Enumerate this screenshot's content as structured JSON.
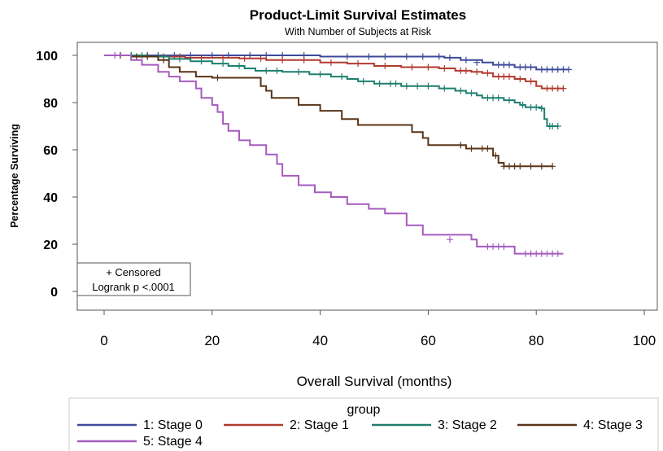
{
  "chart_data": {
    "type": "line",
    "title": "Product-Limit Survival Estimates",
    "subtitle": "With Number of Subjects at Risk",
    "xlabel": "Overall Survival (months)",
    "ylabel": "Percentage Surviving",
    "xlim": [
      0,
      100
    ],
    "ylim": [
      0,
      100
    ],
    "xticks": [
      "0",
      "20",
      "40",
      "60",
      "80",
      "100"
    ],
    "yticks": [
      "0",
      "20",
      "40",
      "60",
      "80",
      "100"
    ],
    "grid": false,
    "legend": {
      "title": "group",
      "placement": "bottom"
    },
    "inset": {
      "censored_label": "+ Censored",
      "logrank_label": "Logrank p <.0001"
    },
    "series": [
      {
        "name": "1: Stage 0",
        "color": "#3d4a9a",
        "steps": [
          [
            0,
            100
          ],
          [
            40,
            99.5
          ],
          [
            63,
            99
          ],
          [
            66,
            98
          ],
          [
            70,
            97
          ],
          [
            72,
            96
          ],
          [
            76,
            95
          ],
          [
            80,
            94
          ],
          [
            86,
            94
          ]
        ],
        "censored": [
          [
            5,
            100
          ],
          [
            8,
            100
          ],
          [
            10,
            100
          ],
          [
            13,
            100
          ],
          [
            16,
            100
          ],
          [
            20,
            100
          ],
          [
            23,
            100
          ],
          [
            27,
            100
          ],
          [
            30,
            100
          ],
          [
            33,
            100
          ],
          [
            37,
            100
          ],
          [
            45,
            99.5
          ],
          [
            49,
            99.5
          ],
          [
            52,
            99.5
          ],
          [
            56,
            99.5
          ],
          [
            59,
            99.5
          ],
          [
            62,
            99.5
          ],
          [
            64,
            99
          ],
          [
            67,
            98
          ],
          [
            69,
            97
          ],
          [
            73,
            96
          ],
          [
            74,
            96
          ],
          [
            75,
            96
          ],
          [
            77,
            95
          ],
          [
            78,
            95
          ],
          [
            79,
            95
          ],
          [
            81,
            94
          ],
          [
            82,
            94
          ],
          [
            83,
            94
          ],
          [
            84,
            94
          ],
          [
            85,
            94
          ],
          [
            86,
            94
          ]
        ]
      },
      {
        "name": "2: Stage 1",
        "color": "#b03a2e",
        "steps": [
          [
            0,
            100
          ],
          [
            6,
            99.5
          ],
          [
            15,
            99
          ],
          [
            25,
            98.7
          ],
          [
            30,
            98
          ],
          [
            40,
            97
          ],
          [
            45,
            96.5
          ],
          [
            50,
            95.5
          ],
          [
            55,
            95
          ],
          [
            62,
            94.5
          ],
          [
            65,
            93.5
          ],
          [
            68,
            93
          ],
          [
            70,
            92.5
          ],
          [
            72,
            91
          ],
          [
            76,
            90
          ],
          [
            78,
            89
          ],
          [
            80,
            87
          ],
          [
            81,
            86
          ],
          [
            85,
            86
          ]
        ],
        "censored": [
          [
            3,
            100
          ],
          [
            8,
            99.5
          ],
          [
            11,
            99.5
          ],
          [
            14,
            99.5
          ],
          [
            18,
            99
          ],
          [
            22,
            99
          ],
          [
            26,
            98.7
          ],
          [
            29,
            98.7
          ],
          [
            33,
            98
          ],
          [
            37,
            98
          ],
          [
            42,
            97
          ],
          [
            47,
            96.5
          ],
          [
            52,
            95.5
          ],
          [
            57,
            95
          ],
          [
            60,
            95
          ],
          [
            63,
            94.5
          ],
          [
            66,
            93.5
          ],
          [
            67,
            93.5
          ],
          [
            69,
            93
          ],
          [
            71,
            92.5
          ],
          [
            73,
            91
          ],
          [
            74,
            91
          ],
          [
            75,
            91
          ],
          [
            77,
            90
          ],
          [
            79,
            89
          ],
          [
            82,
            86
          ],
          [
            83,
            86
          ],
          [
            84,
            86
          ],
          [
            85,
            86
          ]
        ]
      },
      {
        "name": "3: Stage 2",
        "color": "#1f7f6f",
        "steps": [
          [
            0,
            100
          ],
          [
            8,
            99.5
          ],
          [
            12,
            98.5
          ],
          [
            16,
            97.5
          ],
          [
            20,
            96.5
          ],
          [
            23,
            95.5
          ],
          [
            26,
            94.5
          ],
          [
            28,
            93.5
          ],
          [
            33,
            93
          ],
          [
            38,
            92
          ],
          [
            42,
            91
          ],
          [
            45,
            90
          ],
          [
            47,
            89
          ],
          [
            50,
            88
          ],
          [
            55,
            87
          ],
          [
            62,
            86
          ],
          [
            65,
            85
          ],
          [
            67,
            84
          ],
          [
            69,
            83
          ],
          [
            70,
            82
          ],
          [
            74,
            81
          ],
          [
            76,
            80
          ],
          [
            77,
            79
          ],
          [
            78,
            78
          ],
          [
            81,
            77.5
          ],
          [
            81.5,
            73
          ],
          [
            82,
            70
          ],
          [
            84,
            70
          ]
        ],
        "censored": [
          [
            5,
            100
          ],
          [
            7,
            100
          ],
          [
            10,
            99.5
          ],
          [
            14,
            98.5
          ],
          [
            18,
            97.5
          ],
          [
            22,
            96.5
          ],
          [
            25,
            95.5
          ],
          [
            30,
            93.5
          ],
          [
            32,
            93.5
          ],
          [
            36,
            93
          ],
          [
            40,
            92
          ],
          [
            44,
            91
          ],
          [
            48,
            89
          ],
          [
            51,
            88
          ],
          [
            53,
            88
          ],
          [
            54,
            88
          ],
          [
            56,
            87
          ],
          [
            58,
            87
          ],
          [
            60,
            87
          ],
          [
            63,
            86
          ],
          [
            66,
            85
          ],
          [
            68,
            84
          ],
          [
            71,
            82
          ],
          [
            72,
            82
          ],
          [
            73,
            82
          ],
          [
            75,
            81
          ],
          [
            77.5,
            79
          ],
          [
            79,
            78
          ],
          [
            80,
            78
          ],
          [
            81,
            77.5
          ],
          [
            82.5,
            70
          ],
          [
            83,
            70
          ],
          [
            84,
            70
          ]
        ]
      },
      {
        "name": "4: Stage 3",
        "color": "#5a3417",
        "steps": [
          [
            0,
            100
          ],
          [
            5,
            99.5
          ],
          [
            10,
            98
          ],
          [
            12,
            95
          ],
          [
            14,
            93
          ],
          [
            17,
            91
          ],
          [
            20,
            90.5
          ],
          [
            29,
            87
          ],
          [
            30,
            85
          ],
          [
            31,
            82
          ],
          [
            36,
            79
          ],
          [
            40,
            76.5
          ],
          [
            44,
            73
          ],
          [
            47,
            70.5
          ],
          [
            57,
            67.5
          ],
          [
            59,
            65
          ],
          [
            60,
            62
          ],
          [
            67,
            60.5
          ],
          [
            72,
            57.5
          ],
          [
            73,
            54.5
          ],
          [
            74,
            53
          ],
          [
            83,
            53
          ]
        ],
        "censored": [
          [
            3,
            100
          ],
          [
            6,
            99.5
          ],
          [
            8,
            99.5
          ],
          [
            11,
            98
          ],
          [
            21,
            90.5
          ],
          [
            66,
            62
          ],
          [
            68,
            60.5
          ],
          [
            70,
            60.5
          ],
          [
            71,
            60.5
          ],
          [
            72.5,
            57.5
          ],
          [
            74,
            53
          ],
          [
            75,
            53
          ],
          [
            76,
            53
          ],
          [
            77,
            53
          ],
          [
            79,
            53
          ],
          [
            81,
            53
          ],
          [
            83,
            53
          ]
        ]
      },
      {
        "name": "5: Stage 4",
        "color": "#a55bbf",
        "steps": [
          [
            0,
            100
          ],
          [
            5,
            98
          ],
          [
            7,
            96
          ],
          [
            10,
            93
          ],
          [
            12,
            91
          ],
          [
            14,
            89
          ],
          [
            17,
            86
          ],
          [
            18,
            82
          ],
          [
            20,
            79
          ],
          [
            21,
            76
          ],
          [
            22,
            71
          ],
          [
            23,
            68
          ],
          [
            25,
            64
          ],
          [
            27,
            62
          ],
          [
            30,
            58
          ],
          [
            32,
            54
          ],
          [
            33,
            49
          ],
          [
            36,
            45
          ],
          [
            39,
            42
          ],
          [
            42,
            40
          ],
          [
            45,
            37
          ],
          [
            49,
            35
          ],
          [
            52,
            33
          ],
          [
            56,
            28
          ],
          [
            59,
            24
          ],
          [
            68,
            22
          ],
          [
            69,
            19
          ],
          [
            76,
            16
          ],
          [
            85,
            16
          ]
        ],
        "censored": [
          [
            2,
            100
          ],
          [
            64,
            22
          ],
          [
            71,
            19
          ],
          [
            72,
            19
          ],
          [
            73,
            19
          ],
          [
            74,
            19
          ],
          [
            78,
            16
          ],
          [
            79,
            16
          ],
          [
            80,
            16
          ],
          [
            81,
            16
          ],
          [
            82,
            16
          ],
          [
            83,
            16
          ],
          [
            84,
            16
          ]
        ]
      }
    ]
  }
}
